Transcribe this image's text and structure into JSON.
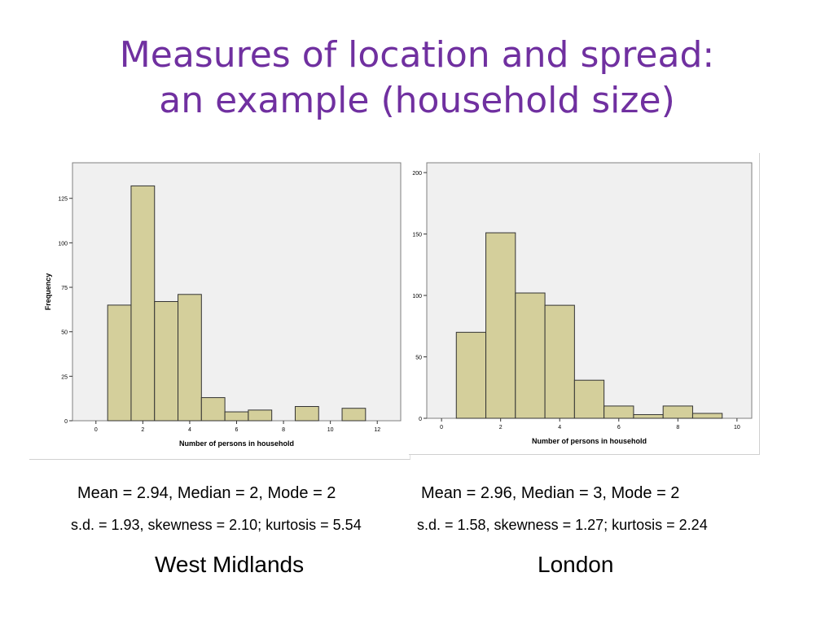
{
  "title": {
    "line1": "Measures of location and spread:",
    "line2": "an example (household size)"
  },
  "colors": {
    "title": "#7030a0",
    "bar_fill": "#d4cf9b",
    "bar_stroke": "#333333",
    "plot_bg": "#f0f0f0"
  },
  "chart_data": [
    {
      "type": "bar",
      "histogram": true,
      "title": "",
      "xlabel": "Number of persons in household",
      "ylabel": "Frequency",
      "xlim": [
        -1,
        13
      ],
      "ylim": [
        0,
        145
      ],
      "x_ticks": [
        0,
        2,
        4,
        6,
        8,
        10,
        12
      ],
      "y_ticks": [
        0,
        25,
        50,
        75,
        100,
        125
      ],
      "bin_width": 1,
      "bin_centers": [
        1,
        2,
        3,
        4,
        5,
        6,
        7,
        8,
        9,
        10,
        11
      ],
      "values": [
        65,
        132,
        67,
        71,
        13,
        5,
        6,
        0,
        8,
        0,
        7
      ]
    },
    {
      "type": "bar",
      "histogram": true,
      "title": "",
      "xlabel": "Number of persons in household",
      "ylabel": "",
      "xlim": [
        -0.5,
        10.5
      ],
      "ylim": [
        0,
        208
      ],
      "x_ticks": [
        0,
        2,
        4,
        6,
        8,
        10
      ],
      "y_ticks": [
        0,
        50,
        100,
        150,
        200
      ],
      "bin_width": 1,
      "bin_centers": [
        1,
        2,
        3,
        4,
        5,
        6,
        7,
        8,
        9
      ],
      "values": [
        70,
        151,
        102,
        92,
        31,
        10,
        3,
        10,
        4
      ]
    }
  ],
  "stats": {
    "west_midlands": {
      "line1": "Mean = 2.94, Median = 2, Mode = 2",
      "line2": "s.d. = 1.93, skewness = 2.10; kurtosis = 5.54",
      "region": "West Midlands"
    },
    "london": {
      "line1": "Mean = 2.96, Median = 3, Mode = 2",
      "line2": "s.d. = 1.58, skewness = 1.27; kurtosis = 2.24",
      "region": "London"
    }
  }
}
